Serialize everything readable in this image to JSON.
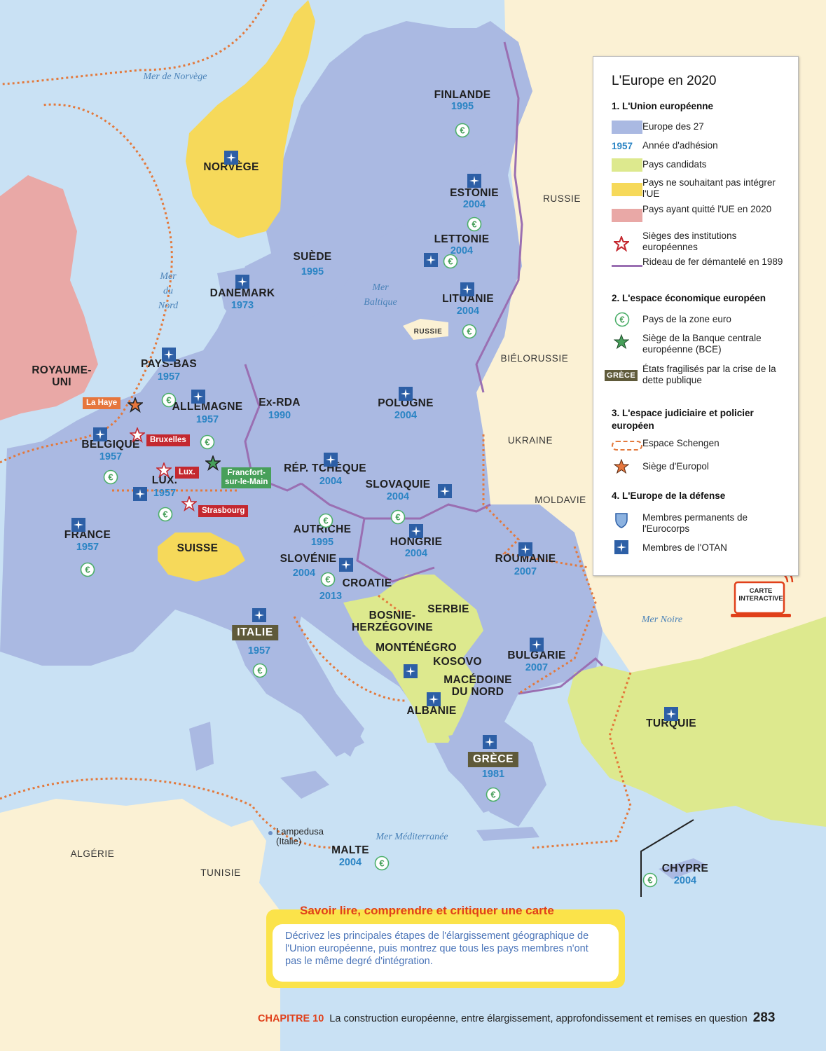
{
  "title": "L'Europe en 2020",
  "colors": {
    "sea": "#c9e1f4",
    "eu27": "#aab9e2",
    "candidate": "#dde98e",
    "not_wishing": "#f6d95a",
    "left_eu": "#e9a8a6",
    "outside": "#fbf1d4",
    "iron_curtain": "#9a6fb2",
    "schengen": "#e3793c",
    "euro_border": "#4caf6a",
    "institution_red": "#c4282f",
    "europol_orange": "#e6763d",
    "bce_green": "#47a05a",
    "otan_blue": "#2d5fa6",
    "year_blue": "#2a84c4",
    "crisis_box": "#5f5a3a"
  },
  "countries": [
    {
      "name": "FINLANDE",
      "year": "1995",
      "otan": false,
      "euro": true
    },
    {
      "name": "NORVÈGE",
      "year": "",
      "otan": true,
      "euro": false
    },
    {
      "name": "SUÈDE",
      "year": "1995",
      "otan": false,
      "euro": false
    },
    {
      "name": "ESTONIE",
      "year": "2004",
      "otan": true,
      "euro": true
    },
    {
      "name": "LETTONIE",
      "year": "2004",
      "otan": true,
      "euro": true
    },
    {
      "name": "LITUANIE",
      "year": "2004",
      "otan": true,
      "euro": true
    },
    {
      "name": "DANEMARK",
      "year": "1973",
      "otan": true,
      "euro": false
    },
    {
      "name": "ROYAUME-\nUNI",
      "year": "",
      "otan": true,
      "euro": false
    },
    {
      "name": "PAYS-BAS",
      "year": "1957",
      "otan": true,
      "euro": true
    },
    {
      "name": "ALLEMAGNE",
      "year": "1957",
      "otan": true,
      "euro": true
    },
    {
      "name": "BELGIQUE",
      "year": "1957",
      "otan": true,
      "euro": true
    },
    {
      "name": "LUX.",
      "year": "1957",
      "otan": true,
      "euro": true
    },
    {
      "name": "FRANCE",
      "year": "1957",
      "otan": true,
      "euro": true
    },
    {
      "name": "SUISSE",
      "year": "",
      "otan": false,
      "euro": false
    },
    {
      "name": "Ex-RDA",
      "year": "1990",
      "otan": false,
      "euro": false
    },
    {
      "name": "POLOGNE",
      "year": "2004",
      "otan": true,
      "euro": false
    },
    {
      "name": "RÉP. TCHÈQUE",
      "year": "2004",
      "otan": true,
      "euro": false
    },
    {
      "name": "SLOVAQUIE",
      "year": "2004",
      "otan": true,
      "euro": true
    },
    {
      "name": "AUTRICHE",
      "year": "1995",
      "otan": false,
      "euro": true
    },
    {
      "name": "HONGRIE",
      "year": "2004",
      "otan": true,
      "euro": false
    },
    {
      "name": "SLOVÉNIE",
      "year": "2004",
      "otan": true,
      "euro": true
    },
    {
      "name": "CROATIE",
      "year": "2013",
      "otan": true,
      "euro": false
    },
    {
      "name": "ROUMANIE",
      "year": "2007",
      "otan": true,
      "euro": false
    },
    {
      "name": "BULGARIE",
      "year": "2007",
      "otan": true,
      "euro": false
    },
    {
      "name": "ITALIE",
      "year": "1957",
      "otan": true,
      "euro": true
    },
    {
      "name": "GRÈCE",
      "year": "1981",
      "otan": true,
      "euro": true
    },
    {
      "name": "MALTE",
      "year": "2004",
      "otan": false,
      "euro": true
    },
    {
      "name": "CHYPRE",
      "year": "2004",
      "otan": false,
      "euro": true
    },
    {
      "name": "SERBIE",
      "year": "",
      "otan": false,
      "euro": false
    },
    {
      "name": "BOSNIE-\nHERZÉGOVINE",
      "year": "",
      "otan": false,
      "euro": false
    },
    {
      "name": "MONTÉNÉGRO",
      "year": "",
      "otan": true,
      "euro": false
    },
    {
      "name": "KOSOVO",
      "year": "",
      "otan": false,
      "euro": false
    },
    {
      "name": "MACÉDOINE\nDU NORD",
      "year": "",
      "otan": false,
      "euro": false
    },
    {
      "name": "ALBANIE",
      "year": "",
      "otan": true,
      "euro": false
    },
    {
      "name": "TURQUIE",
      "year": "",
      "otan": true,
      "euro": false
    }
  ],
  "other_countries": [
    "RUSSIE",
    "BIÉLORUSSIE",
    "UKRAINE",
    "MOLDAVIE",
    "ALGÉRIE",
    "TUNISIE",
    "RUSSIE"
  ],
  "seas": [
    "Mer de Norvège",
    "Mer\ndu\nNord",
    "Mer\nBaltique",
    "Mer Noire",
    "Mer Méditerranée"
  ],
  "cities": [
    "La Haye",
    "Bruxelles",
    "Lux.",
    "Strasbourg",
    "Francfort-\nsur-le-Main"
  ],
  "lampedusa": "Lampedusa\n(Italie)",
  "legend": {
    "title": "L'Europe en 2020",
    "s1": "1. L'Union européenne",
    "eu27": "Europe des 27",
    "year_sample": "1957",
    "year_label": "Année d'adhésion",
    "candidates": "Pays candidats",
    "not_wishing": "Pays ne souhaitant pas intégrer l'UE",
    "left": "Pays ayant quitté l'UE en 2020",
    "institutions": "Sièges des institutions européennes",
    "curtain": "Rideau de fer démantelé en 1989",
    "s2": "2. L'espace économique européen",
    "euro": "Pays de la zone euro",
    "bce": "Siège de la Banque centrale européenne (BCE)",
    "crisis_sample": "GRÈCE",
    "crisis": "États fragilisés par la crise de la dette publique",
    "s3": "3. L'espace judiciaire et policier européen",
    "schengen": "Espace Schengen",
    "europol": "Siège d'Europol",
    "s4": "4. L'Europe de la défense",
    "eurocorps": "Membres permanents de l'Eurocorps",
    "otan": "Membres de l'OTAN"
  },
  "interactive": "CARTE\nINTERACTIVE",
  "task": {
    "heading": "Savoir lire, comprendre et critiquer une carte",
    "text": "Décrivez les principales étapes de l'élargissement géographique de l'Union européenne, puis montrez que tous les pays membres n'ont pas le même degré d'intégration."
  },
  "footer": {
    "chapter": "CHAPITRE 10",
    "text": "La construction européenne, entre élargissement, approfondissement et remises en question",
    "page": "283"
  }
}
